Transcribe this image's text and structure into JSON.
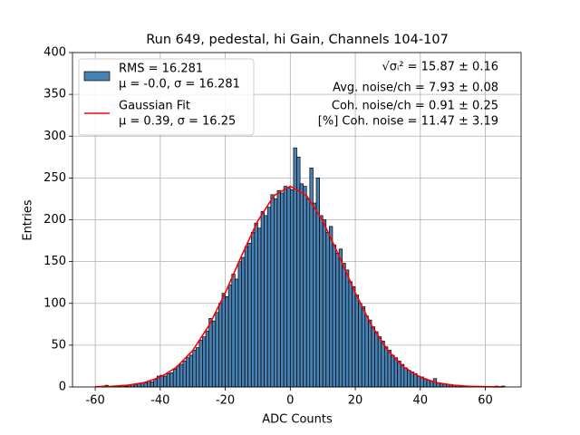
{
  "chart_data": {
    "type": "histogram",
    "title": "Run 649, pedestal, hi Gain, Channels 104-107",
    "xlabel": "ADC Counts",
    "ylabel": "Entries",
    "xlim": [
      -67,
      71
    ],
    "ylim": [
      0,
      400
    ],
    "xticks": [
      -60,
      -40,
      -20,
      0,
      20,
      40,
      60
    ],
    "yticks": [
      0,
      50,
      100,
      150,
      200,
      250,
      300,
      350,
      400
    ],
    "grid": true,
    "legend": "upper left",
    "annotations": [
      "√σᵢ² = 15.87 ± 0.16",
      "Avg. noise/ch = 7.93 ± 0.08",
      "Coh. noise/ch = 0.91 ± 0.25",
      "[%] Coh. noise = 11.47 ± 3.19"
    ],
    "bins": [
      -61,
      -60,
      -59,
      -58,
      -57,
      -56,
      -55,
      -54,
      -53,
      -52,
      -51,
      -50,
      -49,
      -48,
      -47,
      -46,
      -45,
      -44,
      -43,
      -42,
      -41,
      -40,
      -39,
      -38,
      -37,
      -36,
      -35,
      -34,
      -33,
      -32,
      -31,
      -30,
      -29,
      -28,
      -27,
      -26,
      -25,
      -24,
      -23,
      -22,
      -21,
      -20,
      -19,
      -18,
      -17,
      -16,
      -15,
      -14,
      -13,
      -12,
      -11,
      -10,
      -9,
      -8,
      -7,
      -6,
      -5,
      -4,
      -3,
      -2,
      -1,
      0,
      1,
      2,
      3,
      4,
      5,
      6,
      7,
      8,
      9,
      10,
      11,
      12,
      13,
      14,
      15,
      16,
      17,
      18,
      19,
      20,
      21,
      22,
      23,
      24,
      25,
      26,
      27,
      28,
      29,
      30,
      31,
      32,
      33,
      34,
      35,
      36,
      37,
      38,
      39,
      40,
      41,
      42,
      43,
      44,
      45,
      46,
      47,
      48,
      49,
      50,
      51,
      52,
      53,
      54,
      55,
      56,
      57,
      58,
      59,
      60,
      61,
      62,
      63,
      64,
      65,
      66
    ],
    "series": [
      {
        "name": [
          "RMS = 16.281",
          "μ = -0.0, σ = 16.281"
        ],
        "color": "#4682b4",
        "values": [
          0,
          0,
          0,
          1,
          2,
          0,
          1,
          1,
          1,
          2,
          1,
          2,
          3,
          3,
          4,
          5,
          5,
          7,
          6,
          9,
          13,
          14,
          13,
          16,
          17,
          21,
          25,
          27,
          31,
          35,
          38,
          44,
          47,
          56,
          60,
          67,
          82,
          79,
          89,
          100,
          112,
          108,
          122,
          135,
          129,
          150,
          155,
          168,
          172,
          185,
          196,
          190,
          210,
          205,
          215,
          230,
          225,
          235,
          232,
          240,
          238,
          236,
          286,
          275,
          243,
          240,
          225,
          262,
          220,
          250,
          205,
          200,
          185,
          192,
          170,
          160,
          165,
          148,
          140,
          126,
          120,
          110,
          100,
          96,
          85,
          80,
          72,
          66,
          60,
          55,
          48,
          44,
          38,
          35,
          31,
          27,
          23,
          20,
          18,
          16,
          13,
          12,
          10,
          8,
          7,
          10,
          5,
          4,
          4,
          3,
          3,
          2,
          2,
          1,
          1,
          1,
          1,
          0,
          0,
          0,
          0,
          0,
          0,
          0,
          1,
          0,
          1
        ]
      },
      {
        "name": [
          "Gaussian Fit",
          "μ = 0.39, σ = 16.25"
        ],
        "color": "#ff0000",
        "type": "line",
        "x": [
          -60,
          -55,
          -50,
          -45,
          -40,
          -35,
          -30,
          -25,
          -20,
          -15,
          -10,
          -5,
          0,
          5,
          10,
          15,
          20,
          25,
          30,
          35,
          40,
          45,
          50,
          55,
          60,
          65
        ],
        "values": [
          0.3,
          0.8,
          2.1,
          5.2,
          11.6,
          23.6,
          43.7,
          73.6,
          112.6,
          156.8,
          198.6,
          228.9,
          240,
          228.9,
          198.6,
          156.8,
          112.6,
          73.6,
          43.7,
          23.6,
          11.6,
          5.2,
          2.1,
          0.8,
          0.3,
          0.1
        ]
      }
    ]
  }
}
